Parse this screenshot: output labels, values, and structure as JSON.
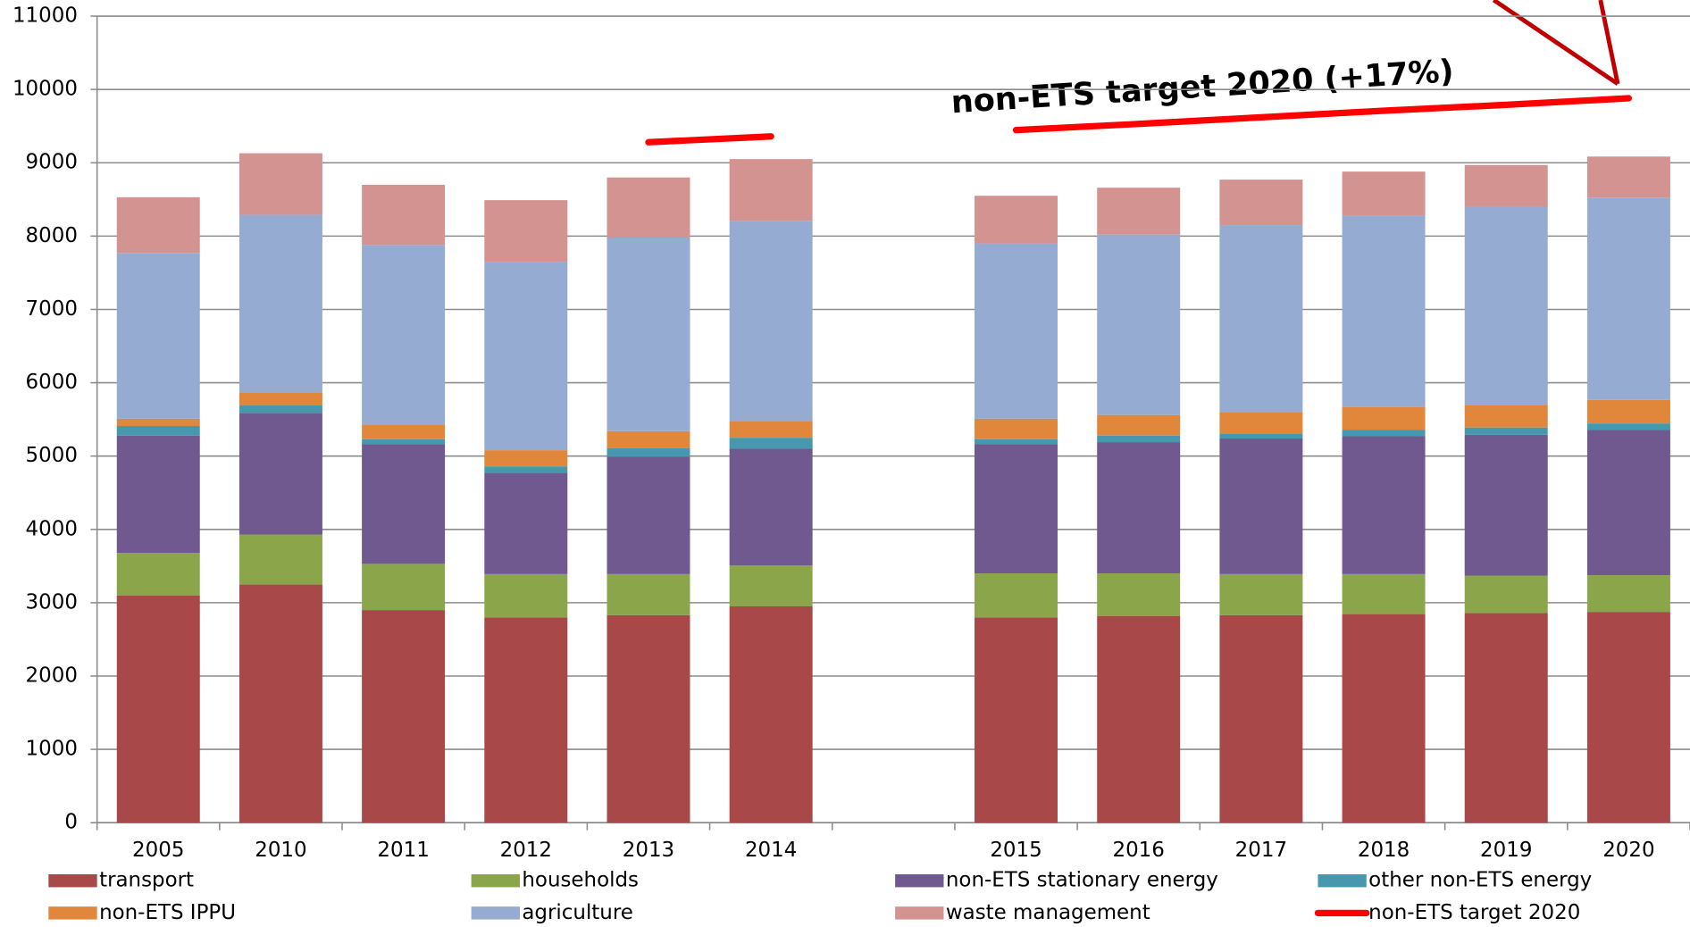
{
  "chart_data": {
    "type": "bar",
    "stacked": true,
    "annotation": "non-ETS target 2020 (+17%)",
    "categories": [
      "2005",
      "2010",
      "2011",
      "2012",
      "2013",
      "2014",
      null,
      "2015",
      "2016",
      "2017",
      "2018",
      "2019",
      "2020"
    ],
    "ylim": [
      0,
      11000
    ],
    "yticks": [
      0,
      1000,
      2000,
      3000,
      4000,
      5000,
      6000,
      7000,
      8000,
      9000,
      10000,
      11000
    ],
    "grid": true,
    "series": [
      {
        "name": "transport",
        "color": "#a84848",
        "values": [
          3100,
          3250,
          2900,
          2800,
          2830,
          2950,
          null,
          2800,
          2820,
          2830,
          2845,
          2860,
          2875
        ]
      },
      {
        "name": "households",
        "color": "#8ba54a",
        "values": [
          580,
          680,
          630,
          590,
          560,
          560,
          null,
          600,
          580,
          560,
          545,
          510,
          500
        ]
      },
      {
        "name": "non-ETS stationary energy",
        "color": "#6f598f",
        "values": [
          1600,
          1660,
          1630,
          1380,
          1600,
          1590,
          null,
          1760,
          1790,
          1850,
          1880,
          1920,
          1980
        ]
      },
      {
        "name": "other non-ETS energy",
        "color": "#4797ae",
        "values": [
          130,
          100,
          70,
          90,
          120,
          150,
          null,
          70,
          90,
          70,
          90,
          100,
          90
        ]
      },
      {
        "name": "non-ETS IPPU",
        "color": "#e0873c",
        "values": [
          100,
          180,
          200,
          220,
          230,
          230,
          null,
          280,
          280,
          290,
          310,
          310,
          320
        ]
      },
      {
        "name": "agriculture",
        "color": "#95abd1",
        "values": [
          2260,
          2420,
          2450,
          2570,
          2640,
          2730,
          null,
          2390,
          2460,
          2550,
          2610,
          2700,
          2760
        ]
      },
      {
        "name": "waste management",
        "color": "#d39391",
        "values": [
          760,
          840,
          820,
          840,
          820,
          840,
          null,
          650,
          640,
          620,
          600,
          570,
          560
        ]
      },
      {
        "name": "non-ETS target 2020",
        "color": "#ff0000",
        "type": "line",
        "values": [
          null,
          null,
          null,
          null,
          9280,
          9360,
          null,
          9446,
          9530,
          9620,
          9710,
          9790,
          9880
        ]
      }
    ]
  }
}
